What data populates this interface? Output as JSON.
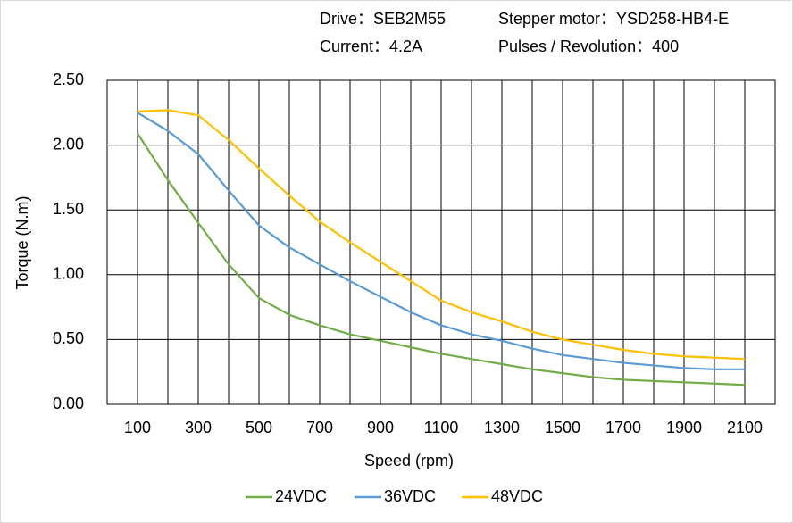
{
  "chart_data": {
    "type": "line",
    "annotations": [
      "Drive：SEB2M55",
      "Stepper motor：YSD258-HB4-E",
      "Current：4.2A",
      "Pulses / Revolution：400"
    ],
    "x_label": "Speed  (rpm)",
    "y_label": "Torque (N.m)",
    "x": [
      100,
      200,
      300,
      400,
      500,
      600,
      700,
      800,
      900,
      1000,
      1100,
      1200,
      1300,
      1400,
      1500,
      1600,
      1700,
      1800,
      1900,
      2000,
      2100
    ],
    "series": [
      {
        "name": "24VDC",
        "color": "#70ad47",
        "values": [
          2.09,
          1.73,
          1.4,
          1.08,
          0.82,
          0.69,
          0.61,
          0.54,
          0.49,
          0.44,
          0.39,
          0.35,
          0.31,
          0.27,
          0.24,
          0.21,
          0.19,
          0.18,
          0.17,
          0.16,
          0.15
        ]
      },
      {
        "name": "36VDC",
        "color": "#5b9bd5",
        "values": [
          2.25,
          2.11,
          1.93,
          1.65,
          1.38,
          1.21,
          1.08,
          0.95,
          0.83,
          0.71,
          0.61,
          0.54,
          0.49,
          0.43,
          0.38,
          0.35,
          0.32,
          0.3,
          0.28,
          0.27,
          0.27
        ]
      },
      {
        "name": "48VDC",
        "color": "#ffc000",
        "values": [
          2.26,
          2.27,
          2.23,
          2.04,
          1.82,
          1.61,
          1.41,
          1.25,
          1.1,
          0.95,
          0.8,
          0.71,
          0.64,
          0.56,
          0.5,
          0.46,
          0.42,
          0.39,
          0.37,
          0.36,
          0.35
        ]
      }
    ],
    "xlim": [
      0,
      2200
    ],
    "xticks": [
      100,
      300,
      500,
      700,
      900,
      1100,
      1300,
      1500,
      1700,
      1900,
      2100
    ],
    "x_gridlines": [
      100,
      200,
      300,
      400,
      500,
      600,
      700,
      800,
      900,
      1000,
      1100,
      1200,
      1300,
      1400,
      1500,
      1600,
      1700,
      1800,
      1900,
      2000,
      2100
    ],
    "ylim": [
      0,
      2.5
    ],
    "yticks": [
      {
        "value": 0,
        "label": "0.00"
      },
      {
        "value": 0.5,
        "label": "0.50"
      },
      {
        "value": 1,
        "label": "1.00"
      },
      {
        "value": 1.5,
        "label": "1.50"
      },
      {
        "value": 2,
        "label": "2.00"
      },
      {
        "value": 2.5,
        "label": "2.50"
      }
    ],
    "grid": true,
    "legend": "bottom"
  }
}
